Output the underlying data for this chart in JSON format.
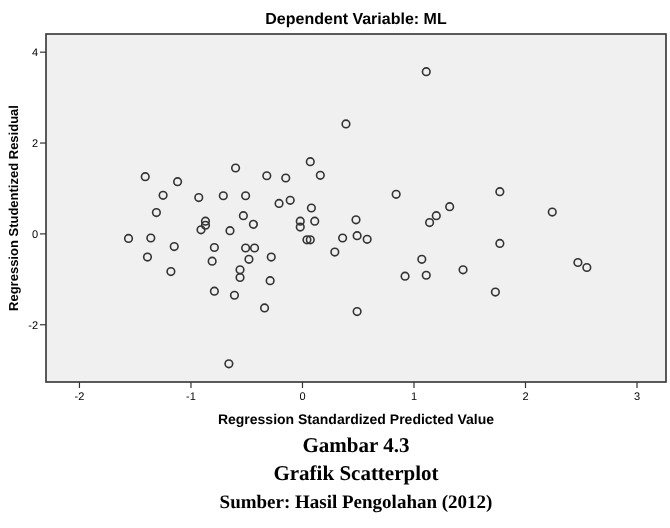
{
  "chart_data": {
    "type": "scatter",
    "title": "Dependent Variable: ML",
    "xlabel": "Regression Standardized Predicted Value",
    "ylabel": "Regression Studentized Residual",
    "annotations": [
      "Gambar 4.3",
      "Grafik Scatterplot",
      "Sumber: Hasil Pengolahan (2012)"
    ],
    "xlim": [
      -2.3,
      3.26
    ],
    "ylim": [
      -3.26,
      4.4
    ],
    "xticks": [
      -2,
      -1,
      0,
      1,
      2,
      3
    ],
    "yticks": [
      -2,
      0,
      2,
      4
    ],
    "grid": false,
    "marker": "circle",
    "series": [
      {
        "color": "#333333",
        "x": [
          0.39,
          0.07,
          0.16,
          -0.6,
          -0.32,
          -0.15,
          -1.41,
          -1.12,
          -1.25,
          -0.93,
          -0.71,
          -0.51,
          -0.21,
          -0.11,
          0.08,
          -1.31,
          -0.53,
          -0.87,
          -0.87,
          -0.91,
          -0.44,
          -0.65,
          -0.02,
          -0.02,
          0.11,
          0.48,
          -1.56,
          -1.36,
          -1.15,
          -0.79,
          -0.51,
          -0.43,
          0.04,
          0.07,
          0.36,
          0.49,
          0.58,
          0.29,
          -1.39,
          -0.81,
          -0.48,
          -0.28,
          -1.18,
          -0.56,
          -0.56,
          -0.29,
          -0.79,
          -0.61,
          -0.34,
          0.49,
          -0.66,
          1.11,
          0.84,
          1.77,
          1.32,
          1.2,
          1.14,
          2.24,
          1.77,
          1.07,
          0.92,
          1.11,
          1.44,
          1.73,
          2.47,
          2.55
        ],
        "values": [
          2.42,
          1.59,
          1.29,
          1.45,
          1.28,
          1.23,
          1.26,
          1.15,
          0.85,
          0.8,
          0.84,
          0.84,
          0.67,
          0.74,
          0.57,
          0.47,
          0.4,
          0.28,
          0.19,
          0.09,
          0.21,
          0.07,
          0.28,
          0.15,
          0.28,
          0.31,
          -0.1,
          -0.09,
          -0.28,
          -0.3,
          -0.31,
          -0.31,
          -0.13,
          -0.13,
          -0.09,
          -0.04,
          -0.12,
          -0.4,
          -0.51,
          -0.6,
          -0.56,
          -0.51,
          -0.83,
          -0.79,
          -0.96,
          -1.03,
          -1.26,
          -1.35,
          -1.63,
          -1.71,
          -2.86,
          3.57,
          0.87,
          0.93,
          0.6,
          0.4,
          0.25,
          0.48,
          -0.21,
          -0.56,
          -0.93,
          -0.91,
          -0.79,
          -1.28,
          -0.63,
          -0.74
        ]
      }
    ]
  }
}
